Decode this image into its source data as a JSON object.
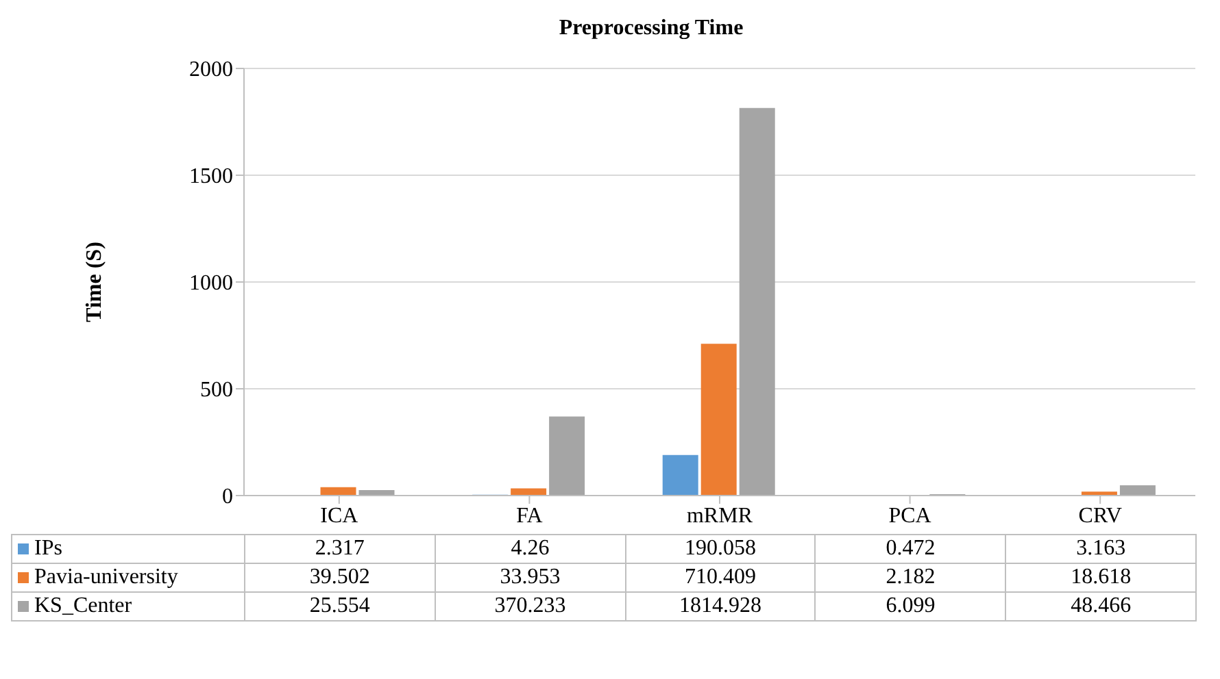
{
  "chart_data": {
    "type": "bar",
    "title": "Preprocessing Time",
    "ylabel": "Time (S)",
    "categories": [
      "ICA",
      "FA",
      "mRMR",
      "PCA",
      "CRV"
    ],
    "series": [
      {
        "name": "IPs",
        "color": "#5b9bd5",
        "values": [
          2.317,
          4.26,
          190.058,
          0.472,
          3.163
        ]
      },
      {
        "name": "Pavia-university",
        "color": "#ed7d31",
        "values": [
          39.502,
          33.953,
          710.409,
          2.182,
          18.618
        ]
      },
      {
        "name": "KS_Center",
        "color": "#a5a5a5",
        "values": [
          25.554,
          370.233,
          1814.928,
          6.099,
          48.466
        ]
      }
    ],
    "ylim": [
      0,
      2000
    ],
    "yticks": [
      0,
      500,
      1000,
      1500,
      2000
    ],
    "grid": "y",
    "legend": "bottom",
    "data_labels": true
  }
}
